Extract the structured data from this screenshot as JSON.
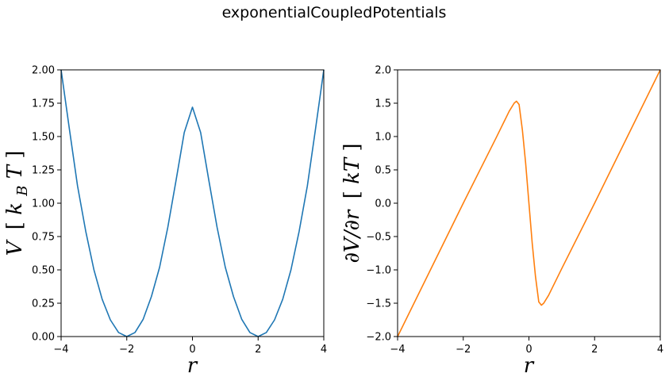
{
  "title": "exponentialCoupledPotentials",
  "chart_data": [
    {
      "type": "line",
      "xlabel": "r",
      "ylabel_main": "V",
      "ylabel_unit_open": "[",
      "ylabel_unit_var": "k",
      "ylabel_unit_sub": "B",
      "ylabel_unit_var2": "T",
      "ylabel_unit_close": "]",
      "xlim": [
        -4,
        4
      ],
      "ylim": [
        0,
        2
      ],
      "xticks": [
        "−4",
        "−2",
        "0",
        "2",
        "4"
      ],
      "xtick_values": [
        -4,
        -2,
        0,
        2,
        4
      ],
      "yticks": [
        "0.00",
        "0.25",
        "0.50",
        "0.75",
        "1.00",
        "1.25",
        "1.50",
        "1.75",
        "2.00"
      ],
      "ytick_values": [
        0,
        0.25,
        0.5,
        0.75,
        1.0,
        1.25,
        1.5,
        1.75,
        2.0
      ],
      "grid": false,
      "color": "#1f77b4",
      "series": [
        {
          "x": [
            -4.0,
            -3.75,
            -3.5,
            -3.25,
            -3.0,
            -2.75,
            -2.5,
            -2.25,
            -2.0,
            -1.75,
            -1.5,
            -1.25,
            -1.0,
            -0.75,
            -0.5,
            -0.25,
            0.0,
            0.25,
            0.5,
            0.75,
            1.0,
            1.25,
            1.5,
            1.75,
            2.0,
            2.25,
            2.5,
            2.75,
            3.0,
            3.25,
            3.5,
            3.75,
            4.0
          ],
          "y": [
            2.0,
            1.56,
            1.13,
            0.79,
            0.5,
            0.28,
            0.125,
            0.03,
            0.0,
            0.03,
            0.13,
            0.3,
            0.52,
            0.82,
            1.17,
            1.53,
            1.72,
            1.53,
            1.17,
            0.82,
            0.52,
            0.3,
            0.13,
            0.03,
            0.0,
            0.03,
            0.125,
            0.28,
            0.5,
            0.79,
            1.13,
            1.56,
            2.0
          ]
        }
      ]
    },
    {
      "type": "line",
      "xlabel": "r",
      "ylabel_main": "∂V/∂r",
      "ylabel_unit_open": "[",
      "ylabel_unit_var": "kT",
      "ylabel_unit_close": "]",
      "xlim": [
        -4,
        4
      ],
      "ylim": [
        -2,
        2
      ],
      "xticks": [
        "−4",
        "−2",
        "0",
        "2",
        "4"
      ],
      "xtick_values": [
        -4,
        -2,
        0,
        2,
        4
      ],
      "yticks": [
        "−2.0",
        "−1.5",
        "−1.0",
        "−0.5",
        "0.0",
        "0.5",
        "1.0",
        "1.5",
        "2.0"
      ],
      "ytick_values": [
        -2,
        -1.5,
        -1.0,
        -0.5,
        0.0,
        0.5,
        1.0,
        1.5,
        2.0
      ],
      "grid": false,
      "color": "#ff7f0e",
      "series": [
        {
          "x": [
            -4.0,
            -3.0,
            -2.0,
            -1.0,
            -0.6,
            -0.45,
            -0.38,
            -0.3,
            -0.2,
            -0.1,
            0.0,
            0.1,
            0.2,
            0.3,
            0.38,
            0.45,
            0.6,
            1.0,
            2.0,
            3.0,
            4.0
          ],
          "y": [
            -2.0,
            -1.0,
            0.0,
            0.98,
            1.38,
            1.5,
            1.53,
            1.48,
            1.1,
            0.6,
            0.0,
            -0.6,
            -1.1,
            -1.48,
            -1.53,
            -1.5,
            -1.38,
            -0.98,
            0.0,
            1.0,
            2.0
          ]
        }
      ]
    }
  ]
}
